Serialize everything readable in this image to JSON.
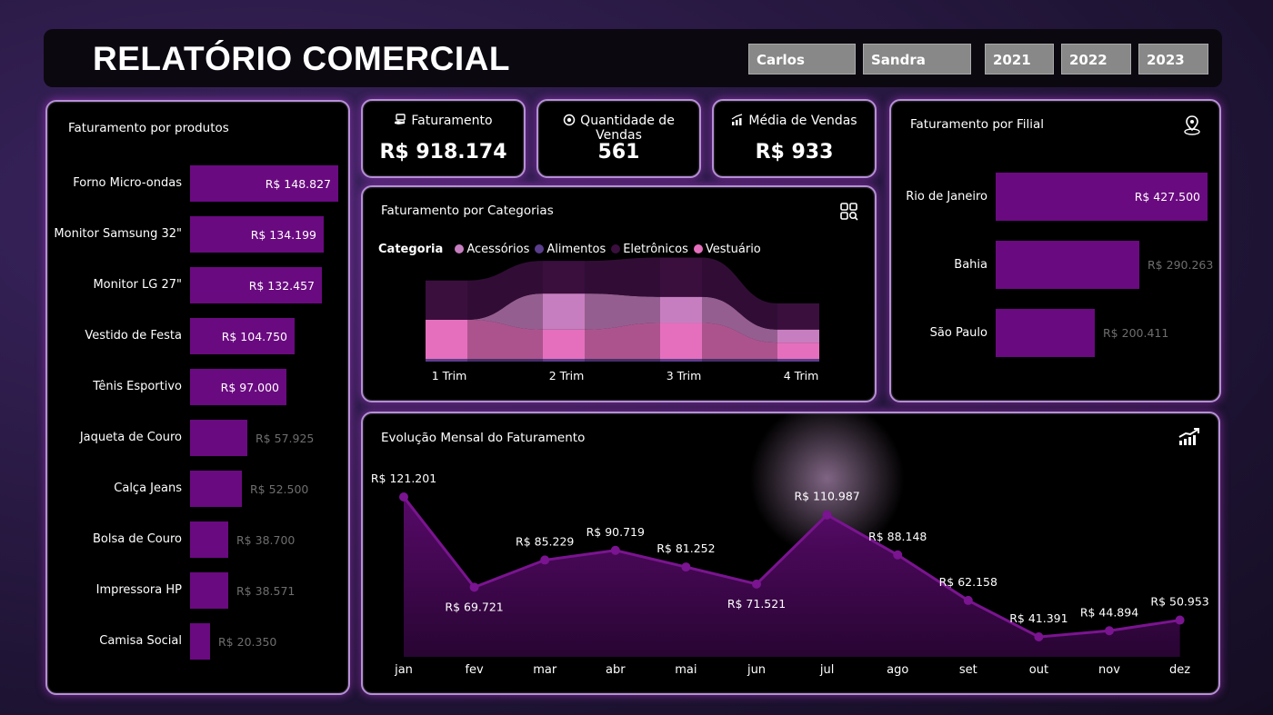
{
  "header": {
    "title": "RELATÓRIO COMERCIAL",
    "sellers": [
      "Carlos",
      "Sandra"
    ],
    "years": [
      "2021",
      "2022",
      "2023"
    ]
  },
  "products": {
    "title": "Faturamento por produtos",
    "items": [
      {
        "name": "Forno Micro-ondas",
        "label": "R$ 148.827",
        "value": 148827
      },
      {
        "name": "Monitor Samsung 32\"",
        "label": "R$ 134.199",
        "value": 134199
      },
      {
        "name": "Monitor LG 27\"",
        "label": "R$ 132.457",
        "value": 132457
      },
      {
        "name": "Vestido de Festa",
        "label": "R$ 104.750",
        "value": 104750
      },
      {
        "name": "Tênis Esportivo",
        "label": "R$ 97.000",
        "value": 97000
      },
      {
        "name": "Jaqueta de Couro",
        "label": "R$ 57.925",
        "value": 57925
      },
      {
        "name": "Calça Jeans",
        "label": "R$ 52.500",
        "value": 52500
      },
      {
        "name": "Bolsa de Couro",
        "label": "R$ 38.700",
        "value": 38700
      },
      {
        "name": "Impressora HP",
        "label": "R$ 38.571",
        "value": 38571
      },
      {
        "name": "Camisa Social",
        "label": "R$ 20.350",
        "value": 20350
      }
    ]
  },
  "kpis": [
    {
      "label": "Faturamento",
      "value": "R$ 918.174",
      "icon": "money-hand-icon"
    },
    {
      "label": "Quantidade de Vendas",
      "value": "561",
      "icon": "target-icon"
    },
    {
      "label": "Média de Vendas",
      "value": "R$ 933",
      "icon": "bar-chart-up-icon"
    }
  ],
  "categories": {
    "title": "Faturamento por Categorias",
    "legend_title": "Categoria",
    "legend": [
      {
        "name": "Acessórios",
        "color": "#c77ec0"
      },
      {
        "name": "Alimentos",
        "color": "#5a3d8c"
      },
      {
        "name": "Eletrônicos",
        "color": "#3a0f3e"
      },
      {
        "name": "Vestuário",
        "color": "#e56fbd"
      }
    ],
    "quarters": [
      "1 Trim",
      "2 Trim",
      "3 Trim",
      "4 Trim"
    ],
    "icon": "grid-search-icon"
  },
  "branches": {
    "title": "Faturamento por Filial",
    "icon": "map-pin-icon",
    "items": [
      {
        "name": "Rio de Janeiro",
        "label": "R$ 427.500",
        "value": 427500
      },
      {
        "name": "Bahia",
        "label": "R$ 290.263",
        "value": 290263
      },
      {
        "name": "São Paulo",
        "label": "R$ 200.411",
        "value": 200411
      }
    ]
  },
  "monthly": {
    "title": "Evolução Mensal do Faturamento",
    "icon": "trend-up-icon"
  },
  "chart_data": [
    {
      "type": "bar",
      "title": "Faturamento por produtos",
      "categories": [
        "Forno Micro-ondas",
        "Monitor Samsung 32\"",
        "Monitor LG 27\"",
        "Vestido de Festa",
        "Tênis Esportivo",
        "Jaqueta de Couro",
        "Calça Jeans",
        "Bolsa de Couro",
        "Impressora HP",
        "Camisa Social"
      ],
      "values": [
        148827,
        134199,
        132457,
        104750,
        97000,
        57925,
        52500,
        38700,
        38571,
        20350
      ]
    },
    {
      "type": "bar",
      "title": "Faturamento por Filial",
      "categories": [
        "Rio de Janeiro",
        "Bahia",
        "São Paulo"
      ],
      "values": [
        427500,
        290263,
        200411
      ]
    },
    {
      "type": "area",
      "title": "Faturamento por Categorias",
      "categories": [
        "1 Trim",
        "2 Trim",
        "3 Trim",
        "4 Trim"
      ],
      "series": [
        {
          "name": "Vestuário",
          "values": [
            60,
            45,
            55,
            25
          ]
        },
        {
          "name": "Acessórios",
          "values": [
            0,
            55,
            40,
            20
          ]
        },
        {
          "name": "Eletrônicos",
          "values": [
            60,
            50,
            60,
            40
          ]
        },
        {
          "name": "Alimentos",
          "values": [
            4,
            4,
            4,
            4
          ]
        }
      ]
    },
    {
      "type": "line",
      "title": "Evolução Mensal do Faturamento",
      "x": [
        "jan",
        "fev",
        "mar",
        "abr",
        "mai",
        "jun",
        "jul",
        "ago",
        "set",
        "out",
        "nov",
        "dez"
      ],
      "values": [
        121201,
        69721,
        85229,
        90719,
        81252,
        71521,
        110987,
        88148,
        62158,
        41391,
        44894,
        50953
      ],
      "labels": [
        "R$ 121.201",
        "R$ 69.721",
        "R$ 85.229",
        "R$ 90.719",
        "R$ 81.252",
        "R$ 71.521",
        "R$ 110.987",
        "R$ 88.148",
        "R$ 62.158",
        "R$ 41.391",
        "R$ 44.894",
        "R$ 50.953"
      ]
    }
  ]
}
